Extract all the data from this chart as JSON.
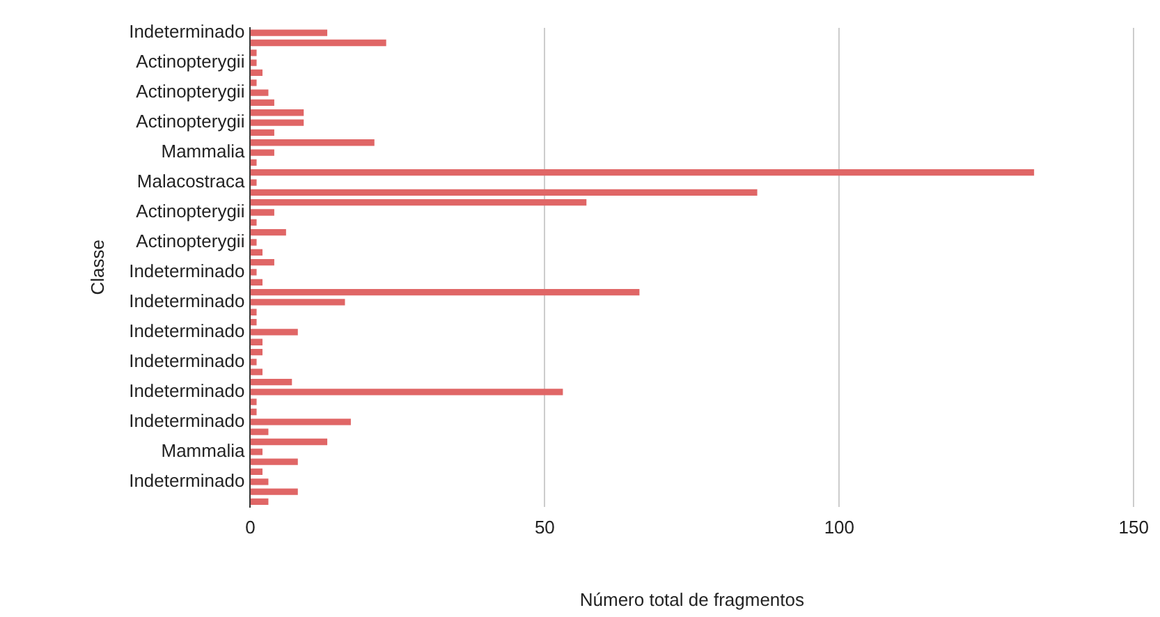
{
  "chart_data": {
    "type": "bar",
    "orientation": "horizontal",
    "xlabel": "Número total de fragmentos",
    "ylabel": "Classe",
    "categories": [
      "Indeterminado",
      null,
      null,
      "Actinopterygii",
      null,
      null,
      "Actinopterygii",
      null,
      null,
      "Actinopterygii",
      null,
      null,
      "Mammalia",
      null,
      null,
      "Malacostraca",
      null,
      null,
      "Actinopterygii",
      null,
      null,
      "Actinopterygii",
      null,
      null,
      "Indeterminado",
      null,
      null,
      "Indeterminado",
      null,
      null,
      "Indeterminado",
      null,
      null,
      "Indeterminado",
      null,
      null,
      "Indeterminado",
      null,
      null,
      "Indeterminado",
      null,
      null,
      "Mammalia",
      null,
      null,
      "Indeterminado",
      null,
      null
    ],
    "values": [
      13,
      23,
      1,
      1,
      2,
      1,
      3,
      4,
      9,
      9,
      4,
      21,
      4,
      1,
      133,
      1,
      86,
      57,
      4,
      1,
      6,
      1,
      2,
      4,
      1,
      2,
      66,
      16,
      1,
      1,
      8,
      2,
      2,
      1,
      2,
      7,
      53,
      1,
      1,
      17,
      3,
      13,
      2,
      8,
      2,
      3,
      8,
      3
    ],
    "color": "#e06666",
    "xlim": [
      0,
      150
    ],
    "xticks": [
      0,
      50,
      100,
      150
    ],
    "grid": "x",
    "legend": false
  }
}
